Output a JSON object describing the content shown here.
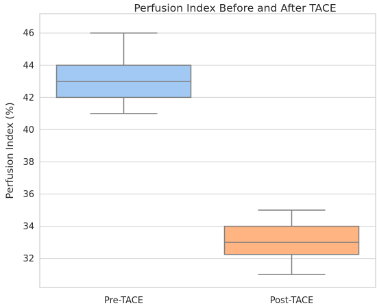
{
  "chart_data": {
    "type": "box",
    "title": "Perfusion Index Before and After TACE",
    "xlabel": "",
    "ylabel": "Perfusion Index (%)",
    "ylim": [
      30.2,
      47.2
    ],
    "yticks": [
      32,
      34,
      36,
      38,
      40,
      42,
      44,
      46
    ],
    "grid": true,
    "categories": [
      "Pre-TACE",
      "Post-TACE"
    ],
    "boxes": [
      {
        "category": "Pre-TACE",
        "whisker_low": 41,
        "q1": 42,
        "median": 43,
        "q3": 44,
        "whisker_high": 46,
        "color": "#a1c9f4"
      },
      {
        "category": "Post-TACE",
        "whisker_low": 31,
        "q1": 32.25,
        "median": 33,
        "q3": 34,
        "whisker_high": 35,
        "color": "#ffb482"
      }
    ]
  }
}
